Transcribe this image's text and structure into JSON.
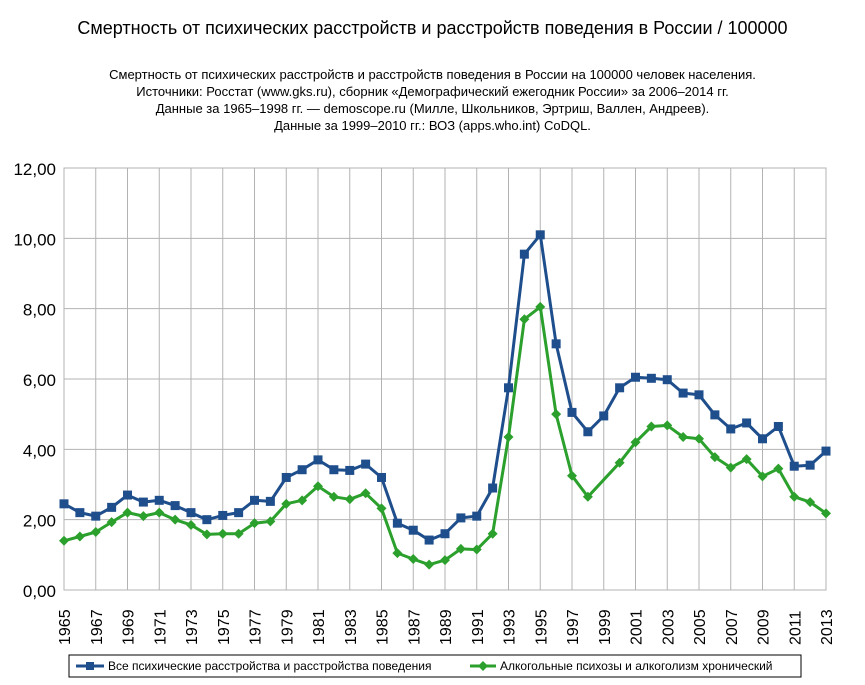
{
  "chart_data": {
    "type": "line",
    "title": "Смертность от психических расстройств и расстройств поведения в России / 100000",
    "subtitle_lines": [
      "Смертность от психических расстройств и расстройств поведения в России на 100000 человек населения.",
      "Источники: Росстат (www.gks.ru), сборник «Демографический ежегодник России» за 2006–2014 гг.",
      "Данные за 1965–1998 гг. — demoscope.ru (Милле, Школьников, Эртриш, Валлен, Андреев).",
      "Данные за 1999–2010 гг.: ВОЗ (apps.who.int) CoDQL."
    ],
    "xlabel": "",
    "ylabel": "",
    "ylim": [
      0,
      12
    ],
    "y_ticks": [
      "0,00",
      "2,00",
      "4,00",
      "6,00",
      "8,00",
      "10,00",
      "12,00"
    ],
    "x_tick_labels": [
      "1965",
      "1967",
      "1969",
      "1971",
      "1973",
      "1975",
      "1977",
      "1979",
      "1981",
      "1983",
      "1985",
      "1987",
      "1989",
      "1991",
      "1993",
      "1995",
      "1997",
      "1999",
      "2001",
      "2003",
      "2005",
      "2007",
      "2009",
      "2011",
      "2013"
    ],
    "grid": true,
    "legend_position": "bottom",
    "series": [
      {
        "name": "Все психические расстройства и расстройства поведения",
        "color": "#1f4e8c",
        "marker": "square",
        "x": [
          1965,
          1966,
          1967,
          1968,
          1969,
          1970,
          1971,
          1972,
          1973,
          1974,
          1975,
          1976,
          1977,
          1978,
          1979,
          1980,
          1981,
          1982,
          1983,
          1984,
          1985,
          1986,
          1987,
          1988,
          1989,
          1990,
          1991,
          1992,
          1993,
          1994,
          1995,
          1996,
          1997,
          1998,
          1999,
          2000,
          2001,
          2002,
          2003,
          2004,
          2005,
          2006,
          2007,
          2008,
          2009,
          2010,
          2011,
          2012,
          2013
        ],
        "values": [
          2.45,
          2.2,
          2.1,
          2.35,
          2.7,
          2.5,
          2.55,
          2.4,
          2.2,
          2.0,
          2.12,
          2.2,
          2.55,
          2.52,
          3.2,
          3.42,
          3.7,
          3.42,
          3.4,
          3.58,
          3.2,
          1.9,
          1.7,
          1.42,
          1.6,
          2.05,
          2.1,
          2.9,
          5.75,
          9.55,
          10.1,
          7.0,
          5.05,
          4.5,
          4.95,
          5.75,
          6.05,
          6.02,
          5.98,
          5.6,
          5.55,
          4.98,
          4.58,
          4.75,
          4.3,
          4.65,
          3.52,
          3.55,
          3.95
        ]
      },
      {
        "name": "Алкогольные психозы и алкоголизм хронический",
        "color": "#2ca02c",
        "marker": "diamond",
        "x": [
          1965,
          1966,
          1967,
          1968,
          1969,
          1970,
          1971,
          1972,
          1973,
          1974,
          1975,
          1976,
          1977,
          1978,
          1979,
          1980,
          1981,
          1982,
          1983,
          1984,
          1985,
          1986,
          1987,
          1988,
          1989,
          1990,
          1991,
          1992,
          1993,
          1994,
          1995,
          1996,
          1997,
          1998,
          2000,
          2001,
          2002,
          2003,
          2004,
          2005,
          2006,
          2007,
          2008,
          2009,
          2010,
          2011,
          2012,
          2013
        ],
        "values": [
          1.4,
          1.52,
          1.65,
          1.93,
          2.2,
          2.1,
          2.2,
          2.0,
          1.85,
          1.58,
          1.6,
          1.6,
          1.9,
          1.95,
          2.45,
          2.55,
          2.95,
          2.65,
          2.58,
          2.75,
          2.32,
          1.05,
          0.88,
          0.72,
          0.85,
          1.17,
          1.15,
          1.6,
          4.35,
          7.7,
          8.05,
          5.0,
          3.25,
          2.65,
          3.62,
          4.2,
          4.65,
          4.68,
          4.35,
          4.3,
          3.78,
          3.48,
          3.72,
          3.23,
          3.45,
          2.65,
          2.5,
          2.18
        ]
      }
    ]
  }
}
